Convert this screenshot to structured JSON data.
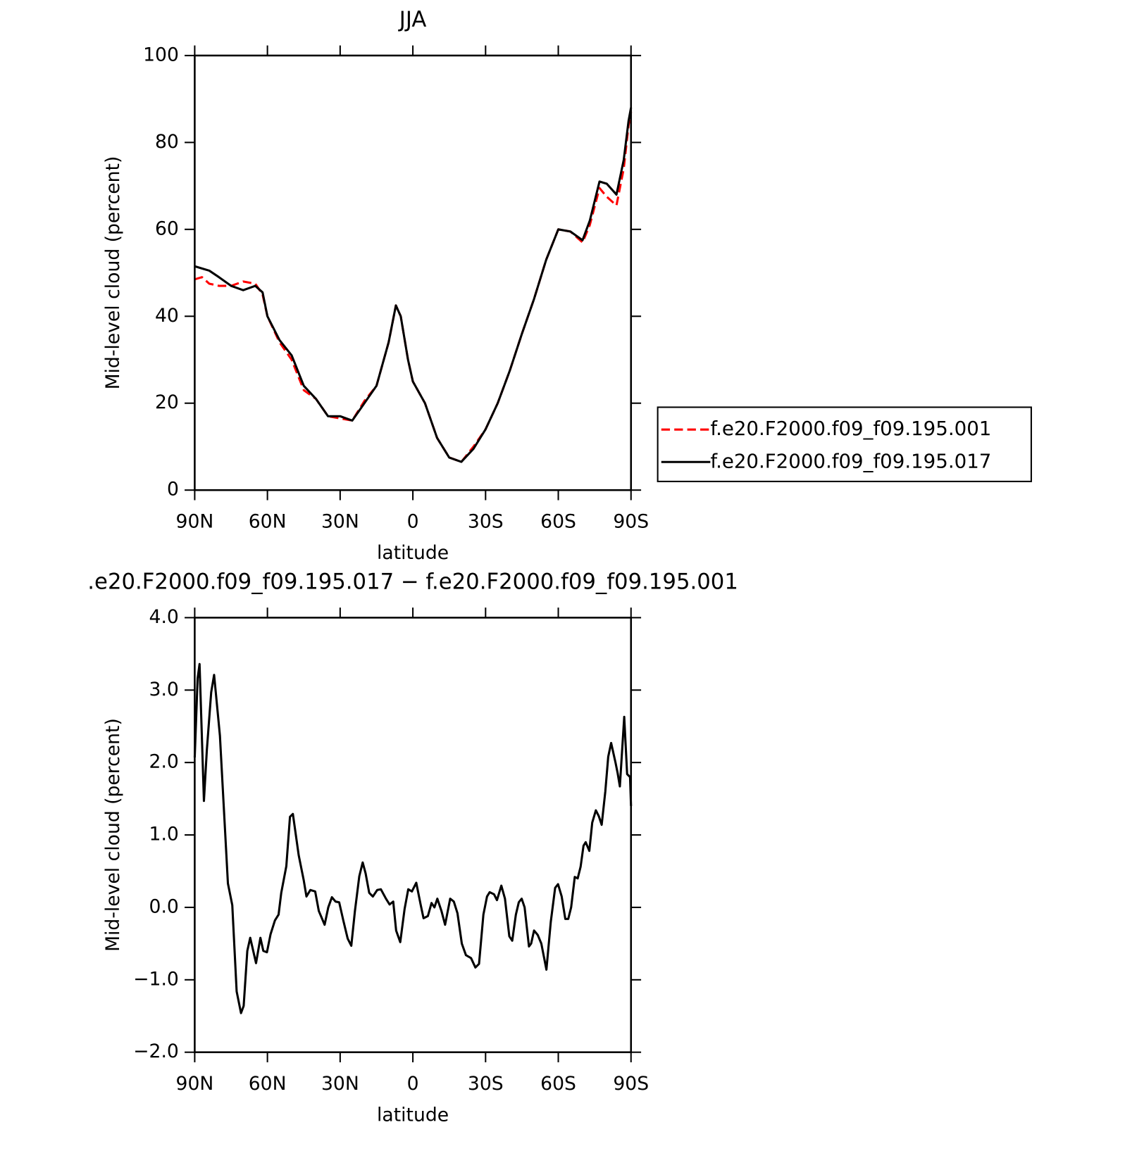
{
  "chart_data": [
    {
      "type": "line",
      "title": "JJA",
      "x_label": "latitude",
      "y_label": "Mid-level cloud (percent)",
      "x": [
        90,
        87,
        84,
        80,
        75,
        70,
        65,
        62,
        60,
        55,
        50,
        45,
        40,
        35,
        30,
        25,
        20,
        15,
        10,
        7,
        5,
        2,
        0,
        -5,
        -10,
        -15,
        -20,
        -25,
        -30,
        -35,
        -40,
        -45,
        -50,
        -55,
        -60,
        -65,
        -70,
        -73,
        -77,
        -80,
        -84,
        -87,
        -89,
        -90
      ],
      "series": [
        {
          "name": "f.e20.F2000.f09_f09.195.001",
          "color": "#ff0000",
          "dash": true,
          "values": [
            48.5,
            49,
            47.5,
            47,
            47,
            48,
            47.5,
            45,
            40,
            34,
            30,
            23,
            21,
            17,
            16.5,
            16,
            20.5,
            24,
            34,
            42.5,
            40,
            30,
            25,
            20,
            12,
            7.5,
            6.5,
            10,
            14,
            20,
            27.5,
            36,
            44,
            53,
            60,
            59.5,
            57,
            61,
            69.5,
            67.5,
            65.5,
            74,
            84,
            87
          ]
        },
        {
          "name": "f.e20.F2000.f09_f09.195.017",
          "color": "#000000",
          "dash": false,
          "values": [
            51.5,
            51,
            50.5,
            49,
            47,
            46,
            47,
            45.5,
            40,
            34.5,
            31,
            24,
            21,
            17,
            17,
            16,
            20,
            24,
            34,
            42.5,
            40,
            30,
            25,
            20,
            12,
            7.5,
            6.5,
            9.5,
            14,
            20,
            27.5,
            36,
            44,
            53,
            60,
            59.5,
            57.5,
            62,
            71,
            70.5,
            68,
            76,
            85,
            88
          ]
        }
      ],
      "xlim": [
        90,
        -90
      ],
      "xticks": [
        {
          "value": 90,
          "label": "90N"
        },
        {
          "value": 60,
          "label": "60N"
        },
        {
          "value": 30,
          "label": "30N"
        },
        0,
        {
          "value": -30,
          "label": "30S"
        },
        {
          "value": -60,
          "label": "60S"
        },
        {
          "value": -90,
          "label": "90S"
        }
      ],
      "ylim": [
        0,
        100
      ],
      "yticks": [
        0,
        20,
        40,
        60,
        80,
        100
      ],
      "legend": "right"
    },
    {
      "type": "line",
      "title": ".e20.F2000.f09_f09.195.017 − f.e20.F2000.f09_f09.195.001",
      "x_label": "latitude",
      "y_label": "Mid-level cloud (percent)",
      "x": [
        90,
        88.8,
        88,
        86.2,
        85,
        83.2,
        82,
        79.6,
        76.3,
        74.5,
        72.7,
        70.9,
        69.8,
        68.3,
        67.1,
        64.7,
        62.9,
        61.7,
        60.2,
        58.7,
        56.9,
        55.4,
        54.3,
        52.2,
        50.7,
        49.5,
        47.1,
        45,
        43.9,
        42.3,
        40.3,
        38.8,
        36.4,
        34.9,
        33.4,
        31.9,
        30.4,
        28.7,
        26.9,
        25.4,
        23.9,
        22.1,
        20.7,
        19.5,
        18,
        16.5,
        14.7,
        13.2,
        11.1,
        9.6,
        8.1,
        6.9,
        5.2,
        3.4,
        1.9,
        0.4,
        -1.4,
        -3.2,
        -4.4,
        -6.2,
        -7.7,
        -8.9,
        -10.1,
        -11.8,
        -13.3,
        -15.4,
        -16.9,
        -18.4,
        -20.2,
        -21.9,
        -24,
        -25.8,
        -27.3,
        -29.1,
        -30.6,
        -31.7,
        -33.5,
        -34.7,
        -36.5,
        -38,
        -39.8,
        -41,
        -42.5,
        -43.7,
        -44.9,
        -46.1,
        -47.9,
        -48.8,
        -50,
        -51.5,
        -53,
        -55.1,
        -56.9,
        -58.7,
        -59.9,
        -61.4,
        -62.9,
        -64.1,
        -65.3,
        -66.8,
        -68,
        -69.2,
        -70.4,
        -71.3,
        -72.8,
        -74,
        -75.5,
        -76.7,
        -77.9,
        -79.4,
        -80.6,
        -81.8,
        -83.6,
        -84.5,
        -85.4,
        -87.2,
        -88.4,
        -89.6,
        -90
      ],
      "series": [
        {
          "color": "#000000",
          "dash": false,
          "values": [
            2.07,
            3.16,
            3.36,
            1.47,
            2.17,
            2.97,
            3.21,
            2.37,
            0.33,
            0.03,
            -1.16,
            -1.46,
            -1.36,
            -0.6,
            -0.42,
            -0.77,
            -0.42,
            -0.6,
            -0.62,
            -0.37,
            -0.18,
            -0.1,
            0.2,
            0.57,
            1.25,
            1.29,
            0.72,
            0.37,
            0.15,
            0.24,
            0.22,
            -0.05,
            -0.24,
            0.0,
            0.14,
            0.08,
            0.07,
            -0.18,
            -0.43,
            -0.53,
            -0.05,
            0.43,
            0.62,
            0.47,
            0.2,
            0.15,
            0.24,
            0.25,
            0.12,
            0.04,
            0.08,
            -0.32,
            -0.48,
            -0.02,
            0.25,
            0.22,
            0.34,
            0.04,
            -0.15,
            -0.12,
            0.06,
            0.0,
            0.12,
            -0.05,
            -0.24,
            0.12,
            0.08,
            -0.08,
            -0.5,
            -0.66,
            -0.7,
            -0.83,
            -0.78,
            -0.1,
            0.15,
            0.21,
            0.18,
            0.1,
            0.3,
            0.12,
            -0.4,
            -0.46,
            -0.1,
            0.07,
            0.12,
            0.0,
            -0.54,
            -0.5,
            -0.32,
            -0.38,
            -0.5,
            -0.86,
            -0.2,
            0.27,
            0.32,
            0.15,
            -0.16,
            -0.16,
            0.0,
            0.42,
            0.4,
            0.56,
            0.85,
            0.9,
            0.78,
            1.17,
            1.34,
            1.26,
            1.14,
            1.6,
            2.08,
            2.27,
            2.0,
            1.85,
            1.67,
            2.63,
            1.84,
            1.8,
            1.4
          ]
        }
      ],
      "xlim": [
        90,
        -90
      ],
      "xticks": [
        {
          "value": 90,
          "label": "90N"
        },
        {
          "value": 60,
          "label": "60N"
        },
        {
          "value": 30,
          "label": "30N"
        },
        0,
        {
          "value": -30,
          "label": "30S"
        },
        {
          "value": -60,
          "label": "60S"
        },
        {
          "value": -90,
          "label": "90S"
        }
      ],
      "ylim": [
        -2,
        4
      ],
      "yticks": [
        {
          "value": -2,
          "label": "−2.0"
        },
        {
          "value": -1,
          "label": "−1.0"
        },
        {
          "value": 0,
          "label": "0.0"
        },
        {
          "value": 1,
          "label": "1.0"
        },
        {
          "value": 2,
          "label": "2.0"
        },
        {
          "value": 3,
          "label": "3.0"
        },
        {
          "value": 4,
          "label": "4.0"
        }
      ]
    }
  ]
}
